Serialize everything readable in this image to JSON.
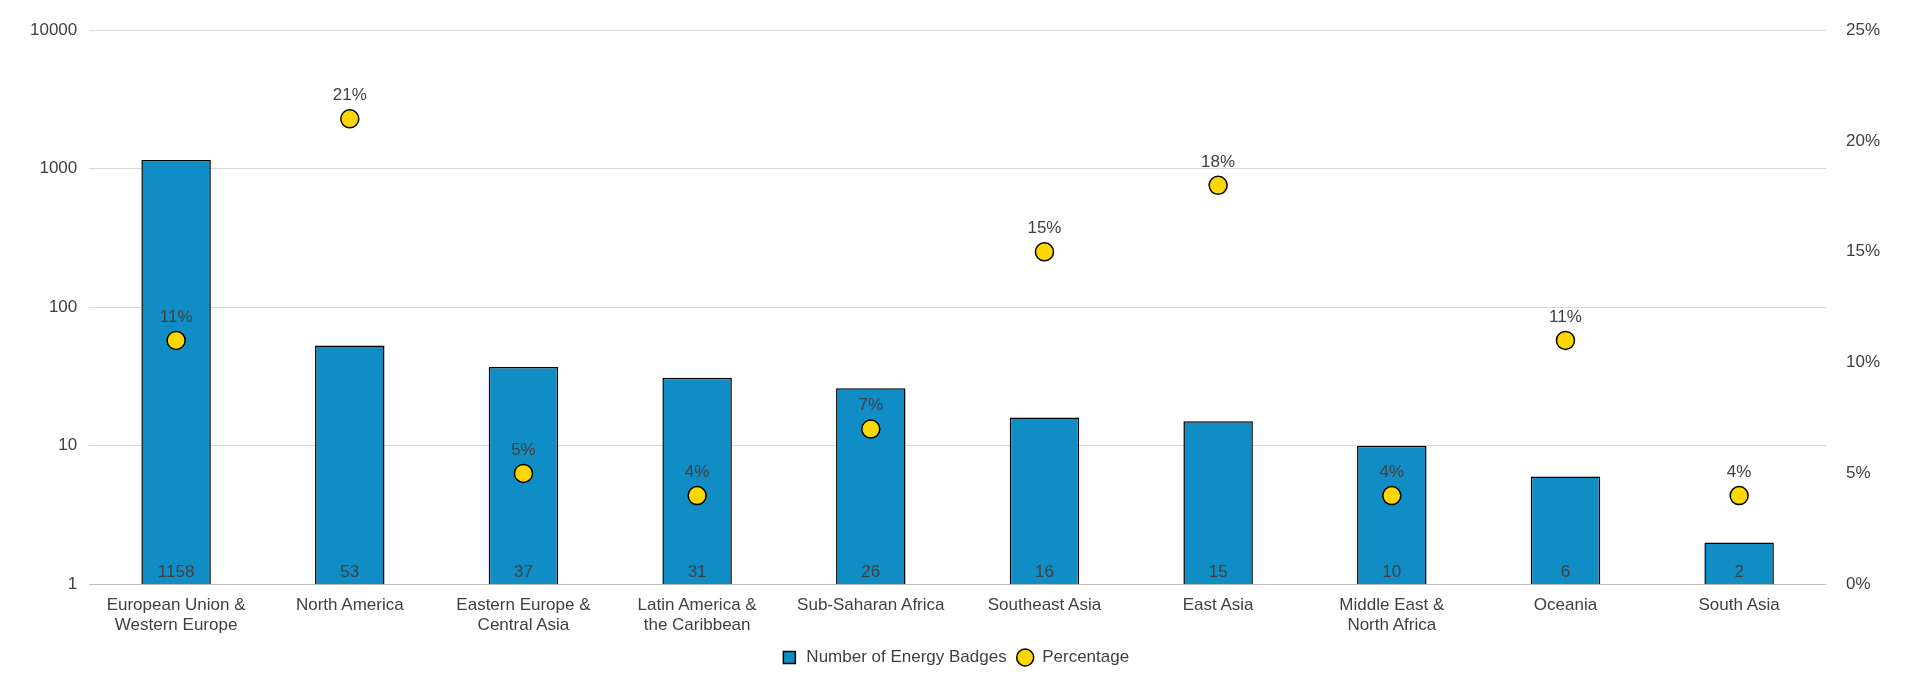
{
  "chart_data": {
    "type": "bar",
    "categories": [
      "European Union & Western Europe",
      "North America",
      "Eastern Europe & Central Asia",
      "Latin America & the Caribbean",
      "Sub-Saharan Africa",
      "Southeast Asia",
      "East Asia",
      "Middle East & North Africa",
      "Oceania",
      "South Asia"
    ],
    "series": [
      {
        "name": "Number of Energy Badges",
        "color": "#118dc5",
        "values": [
          1158,
          53,
          37,
          31,
          26,
          16,
          15,
          10,
          6,
          2
        ],
        "value_labels": [
          "1158",
          "53",
          "37",
          "31",
          "26",
          "16",
          "15",
          "10",
          "6",
          "2"
        ]
      },
      {
        "name": "Percentage",
        "type": "scatter",
        "axis": "y2",
        "color": "#ffd700",
        "values": [
          11,
          21,
          5,
          4,
          7,
          15,
          18,
          4,
          11,
          4
        ],
        "value_labels": [
          "11%",
          "21%",
          "5%",
          "4%",
          "7%",
          "15%",
          "18%",
          "4%",
          "11%",
          "4%"
        ]
      }
    ],
    "log": "y",
    "ylim": [
      1,
      10000
    ],
    "yticks": [
      1,
      10,
      100,
      1000,
      10000
    ],
    "y2lim": [
      0,
      25
    ],
    "y2ticks": [
      {
        "value": 0,
        "label": "0%"
      },
      {
        "value": 5,
        "label": "5%"
      },
      {
        "value": 10,
        "label": "10%"
      },
      {
        "value": 15,
        "label": "15%"
      },
      {
        "value": 20,
        "label": "20%"
      },
      {
        "value": 25,
        "label": "25%"
      }
    ],
    "grid": "y",
    "legend": "bottom",
    "marker": "circle"
  }
}
